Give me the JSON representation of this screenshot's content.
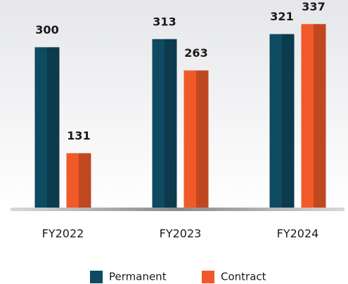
{
  "chart_data": {
    "type": "bar",
    "categories": [
      "FY2022",
      "FY2023",
      "FY2024"
    ],
    "series": [
      {
        "name": "Permanent",
        "color": "#0e4a61",
        "values": [
          300,
          313,
          321
        ]
      },
      {
        "name": "Contract",
        "color": "#f05a28",
        "values": [
          131,
          263,
          337
        ]
      }
    ],
    "ylim": [
      42,
      353
    ],
    "legend": "bottom"
  }
}
